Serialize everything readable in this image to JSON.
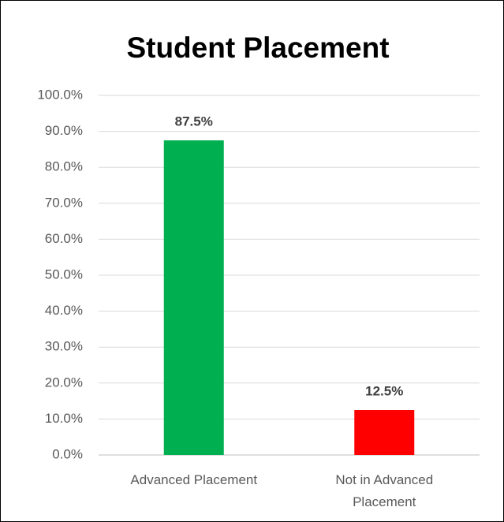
{
  "chart_data": {
    "type": "bar",
    "title": "Student Placement",
    "categories": [
      "Advanced Placement",
      "Not in Advanced Placement"
    ],
    "values": [
      87.5,
      12.5
    ],
    "value_labels": [
      "87.5%",
      "12.5%"
    ],
    "colors": [
      "#00b050",
      "#ff0000"
    ],
    "ylim": [
      0,
      100
    ],
    "yticks": [
      {
        "value": 0,
        "label": "0.0%"
      },
      {
        "value": 10,
        "label": "10.0%"
      },
      {
        "value": 20,
        "label": "20.0%"
      },
      {
        "value": 30,
        "label": "30.0%"
      },
      {
        "value": 40,
        "label": "40.0%"
      },
      {
        "value": 50,
        "label": "50.0%"
      },
      {
        "value": 60,
        "label": "60.0%"
      },
      {
        "value": 70,
        "label": "70.0%"
      },
      {
        "value": 80,
        "label": "80.0%"
      },
      {
        "value": 90,
        "label": "90.0%"
      },
      {
        "value": 100,
        "label": "100.0%"
      }
    ],
    "grid": true
  }
}
